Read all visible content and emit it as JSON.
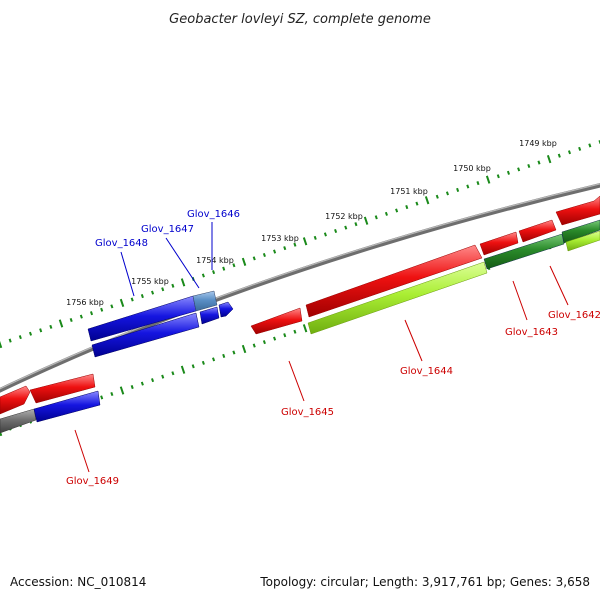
{
  "title": "Geobacter lovleyi SZ, complete genome",
  "footer": {
    "accession": "Accession: NC_010814",
    "summary": "Topology: circular; Length: 3,917,761 bp; Genes: 3,658"
  },
  "colors": {
    "backbone": "#808080",
    "forward_red": "#ee1111",
    "reverse_blue": "#1515e0",
    "light_green": "#aaee33",
    "dark_green": "#2a8a2a",
    "steel_blue": "#5a8fc6",
    "gray_gene": "#707070",
    "tick_green": "#1a8a1a",
    "label_red": "#cc0000",
    "label_blue": "#0000cc"
  },
  "scale_labels": [
    "1749 kbp",
    "1750 kbp",
    "1751 kbp",
    "1752 kbp",
    "1753 kbp",
    "1754 kbp",
    "1755 kbp",
    "1756 kbp"
  ],
  "gene_labels": {
    "glov_1642": "Glov_1642",
    "glov_1643": "Glov_1643",
    "glov_1644": "Glov_1644",
    "glov_1645": "Glov_1645",
    "glov_1646": "Glov_1646",
    "glov_1647": "Glov_1647",
    "glov_1648": "Glov_1648",
    "glov_1649": "Glov_1649"
  }
}
